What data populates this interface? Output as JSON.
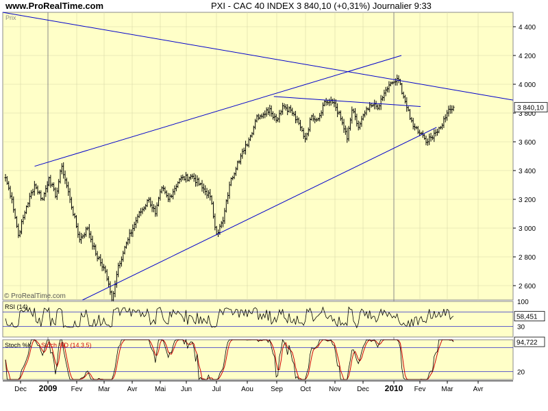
{
  "header": {
    "site": "www.ProRealTime.com",
    "title": "PXI - CAC 40 INDEX    3 840,10 (+0,31%)    Journalier  9:33"
  },
  "chart_data": {
    "type": "bar",
    "price_panel": {
      "label": "Prix",
      "ylim": [
        2500,
        4500
      ],
      "y_ticks": [
        2600,
        2800,
        3000,
        3200,
        3400,
        3600,
        3800,
        4000,
        4200,
        4400
      ],
      "y_tick_labels": [
        "2 600",
        "2 800",
        "3 000",
        "3 200",
        "3 400",
        "3 600",
        "3 800",
        "4 000",
        "4 200",
        "4 400"
      ],
      "last_value_label": "3 840,10",
      "last_value": 3840.1,
      "watermark": "© ProRealTime.com",
      "series_anchors": [
        [
          0,
          3350
        ],
        [
          4,
          3200
        ],
        [
          8,
          2950
        ],
        [
          13,
          3150
        ],
        [
          18,
          3300
        ],
        [
          23,
          3200
        ],
        [
          27,
          3350
        ],
        [
          31,
          3220
        ],
        [
          35,
          3430
        ],
        [
          40,
          3200
        ],
        [
          46,
          2920
        ],
        [
          51,
          3000
        ],
        [
          56,
          2820
        ],
        [
          62,
          2700
        ],
        [
          66,
          2500
        ],
        [
          70,
          2740
        ],
        [
          76,
          2920
        ],
        [
          82,
          3080
        ],
        [
          89,
          3200
        ],
        [
          93,
          3100
        ],
        [
          97,
          3280
        ],
        [
          101,
          3200
        ],
        [
          108,
          3340
        ],
        [
          116,
          3360
        ],
        [
          122,
          3280
        ],
        [
          127,
          3220
        ],
        [
          131,
          2960
        ],
        [
          135,
          3050
        ],
        [
          139,
          3300
        ],
        [
          144,
          3460
        ],
        [
          148,
          3540
        ],
        [
          152,
          3640
        ],
        [
          156,
          3780
        ],
        [
          160,
          3790
        ],
        [
          164,
          3830
        ],
        [
          168,
          3750
        ],
        [
          172,
          3850
        ],
        [
          177,
          3820
        ],
        [
          183,
          3700
        ],
        [
          186,
          3620
        ],
        [
          190,
          3780
        ],
        [
          194,
          3760
        ],
        [
          198,
          3880
        ],
        [
          204,
          3870
        ],
        [
          208,
          3760
        ],
        [
          212,
          3620
        ],
        [
          215,
          3820
        ],
        [
          219,
          3700
        ],
        [
          223,
          3800
        ],
        [
          227,
          3850
        ],
        [
          232,
          3850
        ],
        [
          236,
          3960
        ],
        [
          240,
          4010
        ],
        [
          244,
          4030
        ],
        [
          248,
          3880
        ],
        [
          251,
          3760
        ],
        [
          254,
          3700
        ],
        [
          258,
          3660
        ],
        [
          262,
          3600
        ],
        [
          266,
          3660
        ],
        [
          270,
          3700
        ],
        [
          274,
          3800
        ],
        [
          278,
          3840.1
        ]
      ],
      "trend_lines": [
        {
          "x1": 0.1,
          "y1": 3430,
          "x2": 1.25,
          "y2": 4200
        },
        {
          "x1": 0.0,
          "y1": 4500,
          "x2": 1.6,
          "y2": 3890
        },
        {
          "x1": 0.25,
          "y1": 2500,
          "x2": 1.36,
          "y2": 3700
        },
        {
          "x1": 0.85,
          "y1": 3915,
          "x2": 1.31,
          "y2": 3845
        }
      ]
    },
    "rsi_panel": {
      "label": "RSI (14)",
      "ylim": [
        0,
        100
      ],
      "ticks": [
        "100",
        "30"
      ],
      "levels": [
        30,
        70
      ],
      "last_value_label": "58,451",
      "last_value": 58.451
    },
    "stoch_panel": {
      "label": "Stoch %K",
      "label2": "Stoch %D (14,3,5)",
      "ylim": [
        0,
        100
      ],
      "ticks": [
        "20"
      ],
      "levels": [
        20,
        80
      ],
      "last_value_label": "94,722",
      "last_value": 94.722
    },
    "x_axis": {
      "labels": [
        "Dec",
        "2009",
        "Fev",
        "Mar",
        "Avr",
        "Mai",
        "Jun",
        "Jul",
        "Aou",
        "Sep",
        "Oct",
        "Nov",
        "Dec",
        "2010",
        "Fev",
        "Mar",
        "Avr"
      ],
      "bold": [
        "2009",
        "2010"
      ]
    },
    "colors": {
      "background": "#FFFFC8",
      "bars": "#000000",
      "trendline": "#0000CC",
      "stoch_d": "#CC0000",
      "last_value_box": "#FFFFFF"
    }
  }
}
